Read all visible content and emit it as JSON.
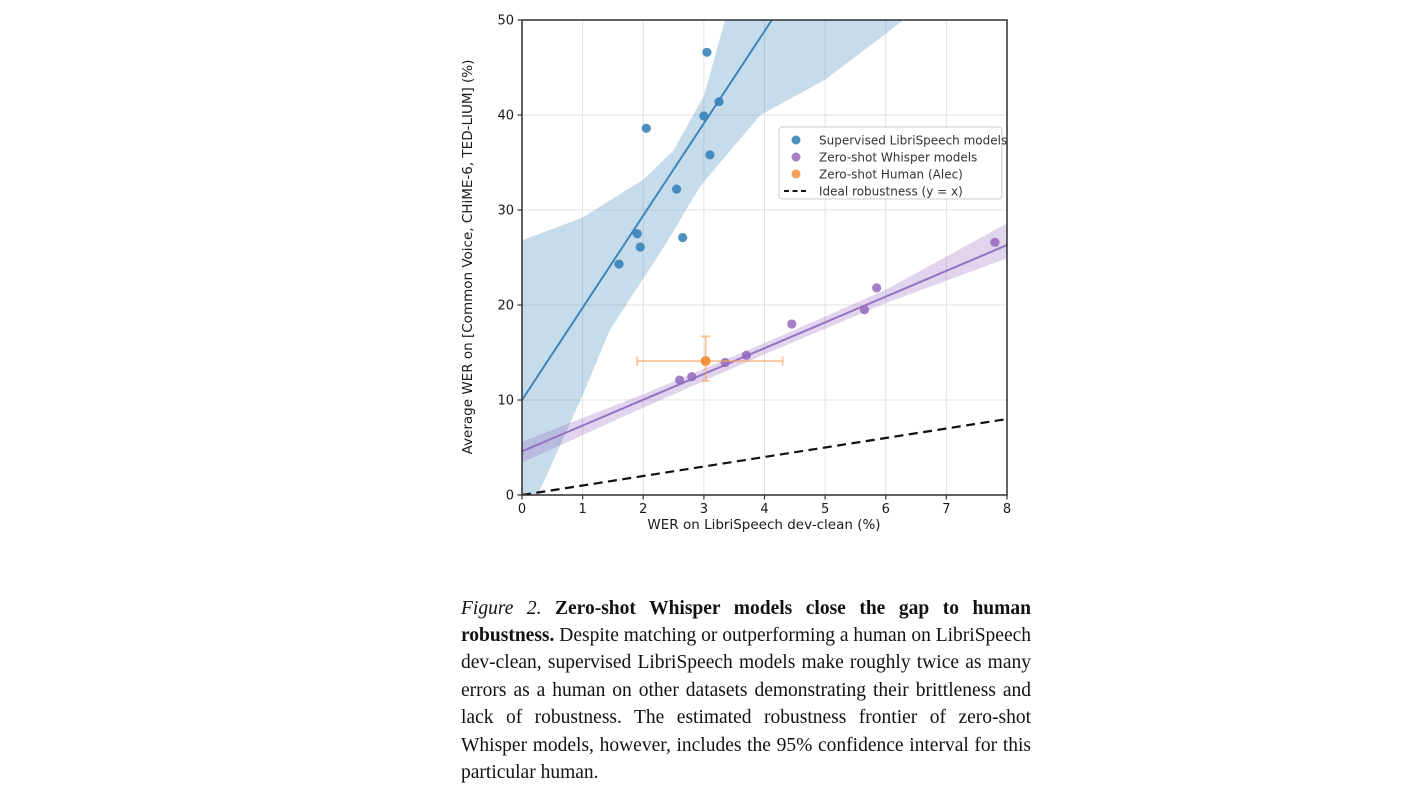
{
  "caption": {
    "label": "Figure 2.",
    "title": "Zero-shot Whisper models close the gap to human robustness.",
    "body": "Despite matching or outperforming a human on LibriSpeech dev-clean, supervised LibriSpeech models make roughly twice as many errors as a human on other datasets demonstrating their brittleness and lack of robustness. The estimated robustness frontier of zero-shot Whisper models, however, includes the 95% confidence interval for this particular human."
  },
  "chart_data": {
    "type": "scatter",
    "title": "",
    "xlabel": "WER on LibriSpeech dev-clean (%)",
    "ylabel": "Average WER on [Common Voice, CHiME-6, TED-LIUM] (%)",
    "xlim": [
      0,
      8
    ],
    "ylim": [
      0,
      50
    ],
    "xticks": [
      0,
      1,
      2,
      3,
      4,
      5,
      6,
      7,
      8
    ],
    "yticks": [
      0,
      10,
      20,
      30,
      40,
      50
    ],
    "grid": true,
    "grid_color": "#e2e2e2",
    "spine_color": "#2e2e2e",
    "legend": {
      "position": "upper-right-inside",
      "border_color": "#cccccc",
      "background": "#ffffff"
    },
    "series": [
      {
        "name": "Supervised LibriSpeech models",
        "kind": "scatter-regression",
        "color": "#2f7cb5",
        "line_color": "#3d85bd",
        "band_opacity": 0.27,
        "points": [
          [
            1.6,
            24.3
          ],
          [
            1.9,
            27.5
          ],
          [
            1.95,
            26.1
          ],
          [
            2.05,
            38.6
          ],
          [
            2.55,
            32.2
          ],
          [
            2.65,
            27.1
          ],
          [
            3.0,
            39.9
          ],
          [
            3.05,
            46.6
          ],
          [
            3.1,
            35.8
          ],
          [
            3.25,
            41.4
          ]
        ],
        "trend": [
          [
            0,
            10
          ],
          [
            4.12,
            50
          ]
        ],
        "band_upper": [
          [
            0,
            26.8
          ],
          [
            1,
            29.2
          ],
          [
            2,
            33.2
          ],
          [
            2.5,
            36.3
          ],
          [
            3.0,
            42
          ],
          [
            3.35,
            50
          ]
        ],
        "band_lower": [
          [
            0,
            0
          ],
          [
            0.26,
            0
          ],
          [
            1,
            10.5
          ],
          [
            1.45,
            17.4
          ],
          [
            2.34,
            26.1
          ],
          [
            2.94,
            32.5
          ],
          [
            3.93,
            40
          ],
          [
            5,
            43.7
          ],
          [
            6.3,
            50
          ]
        ]
      },
      {
        "name": "Zero-shot Whisper models",
        "kind": "scatter-regression",
        "color": "#9467bd",
        "line_color": "#9273c5",
        "band_opacity": 0.28,
        "points": [
          [
            2.6,
            12.1
          ],
          [
            2.8,
            12.45
          ],
          [
            3.35,
            13.95
          ],
          [
            3.7,
            14.7
          ],
          [
            4.45,
            18.0
          ],
          [
            5.65,
            19.5
          ],
          [
            5.85,
            21.8
          ],
          [
            7.8,
            26.6
          ]
        ],
        "trend": [
          [
            0,
            4.6
          ],
          [
            8,
            26.3
          ]
        ],
        "band_upper": [
          [
            0,
            5.6
          ],
          [
            2,
            10.6
          ],
          [
            4,
            16.0
          ],
          [
            6,
            21.6
          ],
          [
            8,
            28.6
          ]
        ],
        "band_lower": [
          [
            0,
            3.4
          ],
          [
            2,
            9.2
          ],
          [
            4,
            14.8
          ],
          [
            6,
            20.2
          ],
          [
            8,
            24.9
          ]
        ]
      },
      {
        "name": "Zero-shot Human (Alec)",
        "kind": "scatter-errorbar",
        "color": "#f5923e",
        "errorbar_color": "#f5a25c",
        "point": [
          3.03,
          14.1
        ],
        "xerr": [
          1.9,
          4.3
        ],
        "yerr": [
          12.0,
          16.7
        ]
      },
      {
        "name": "Ideal robustness (y = x)",
        "kind": "dashed-line",
        "color": "#111111",
        "line": [
          [
            0,
            0
          ],
          [
            8,
            8
          ]
        ]
      }
    ]
  }
}
